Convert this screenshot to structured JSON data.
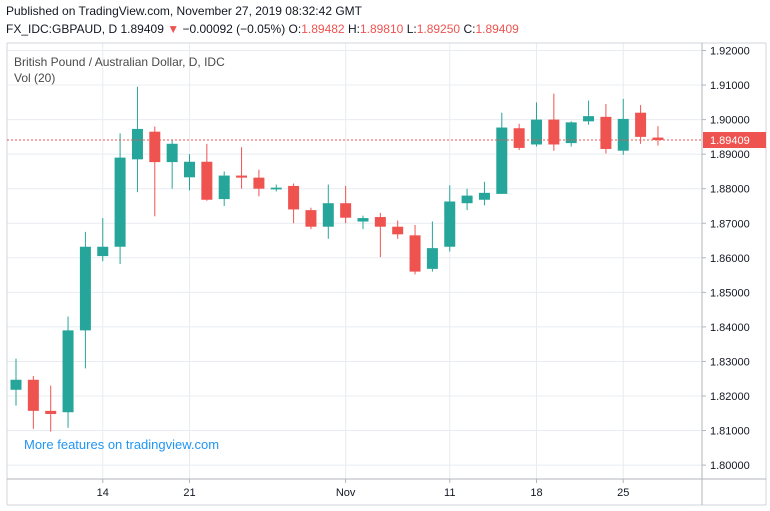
{
  "header": {
    "published": "Published on TradingView.com, November 27, 2019 08:32:42 GMT",
    "symbol": "FX_IDC:GBPAUD, D",
    "last": "1.89409",
    "change": "−0.00092 (−0.05%)",
    "o_label": "O:",
    "o_value": "1.89482",
    "h_label": "H:",
    "h_value": "1.89810",
    "l_label": "L:",
    "l_value": "1.89250",
    "c_label": "C:",
    "c_value": "1.89409"
  },
  "legend": {
    "title": "British Pound / Australian Dollar, D, IDC",
    "volume": "Vol (20)"
  },
  "promo": "More features on tradingview.com",
  "last_price_label": "1.89409",
  "colors": {
    "up": "#26a69a",
    "down": "#ef5350",
    "grid": "#e8ecf0",
    "price_line": "#ef5350",
    "link": "#2196f3"
  },
  "chart_data": {
    "type": "candlestick",
    "title": "British Pound / Australian Dollar, D, IDC",
    "ylim": [
      1.795,
      1.925
    ],
    "y_ticks": [
      "1.80000",
      "1.81000",
      "1.82000",
      "1.83000",
      "1.84000",
      "1.85000",
      "1.86000",
      "1.87000",
      "1.88000",
      "1.89000",
      "1.90000",
      "1.91000",
      "1.92000"
    ],
    "x_ticks": [
      {
        "label": "14",
        "index": 5
      },
      {
        "label": "21",
        "index": 10
      },
      {
        "label": "Nov",
        "index": 19
      },
      {
        "label": "11",
        "index": 25
      },
      {
        "label": "18",
        "index": 30
      },
      {
        "label": "25",
        "index": 35
      }
    ],
    "candles": [
      {
        "o": 1.8218,
        "h": 1.8308,
        "l": 1.8172,
        "c": 1.8247
      },
      {
        "o": 1.8247,
        "h": 1.8258,
        "l": 1.8105,
        "c": 1.8157
      },
      {
        "o": 1.8157,
        "h": 1.823,
        "l": 1.8097,
        "c": 1.8148
      },
      {
        "o": 1.8153,
        "h": 1.843,
        "l": 1.8108,
        "c": 1.839
      },
      {
        "o": 1.839,
        "h": 1.8675,
        "l": 1.828,
        "c": 1.8632
      },
      {
        "o": 1.8605,
        "h": 1.8715,
        "l": 1.859,
        "c": 1.8632
      },
      {
        "o": 1.8632,
        "h": 1.896,
        "l": 1.8582,
        "c": 1.889
      },
      {
        "o": 1.8885,
        "h": 1.9095,
        "l": 1.879,
        "c": 1.8973
      },
      {
        "o": 1.8965,
        "h": 1.898,
        "l": 1.872,
        "c": 1.8877
      },
      {
        "o": 1.8877,
        "h": 1.894,
        "l": 1.88,
        "c": 1.893
      },
      {
        "o": 1.8833,
        "h": 1.89,
        "l": 1.8795,
        "c": 1.8878
      },
      {
        "o": 1.8878,
        "h": 1.893,
        "l": 1.8765,
        "c": 1.8768
      },
      {
        "o": 1.877,
        "h": 1.885,
        "l": 1.875,
        "c": 1.8838
      },
      {
        "o": 1.8838,
        "h": 1.892,
        "l": 1.88,
        "c": 1.8832
      },
      {
        "o": 1.8832,
        "h": 1.8855,
        "l": 1.8778,
        "c": 1.88
      },
      {
        "o": 1.8798,
        "h": 1.8812,
        "l": 1.8792,
        "c": 1.8803
      },
      {
        "o": 1.8808,
        "h": 1.8815,
        "l": 1.87,
        "c": 1.874
      },
      {
        "o": 1.8738,
        "h": 1.8745,
        "l": 1.8683,
        "c": 1.869
      },
      {
        "o": 1.869,
        "h": 1.8812,
        "l": 1.8655,
        "c": 1.8758
      },
      {
        "o": 1.8758,
        "h": 1.8808,
        "l": 1.87,
        "c": 1.8716
      },
      {
        "o": 1.8705,
        "h": 1.8722,
        "l": 1.8683,
        "c": 1.8715
      },
      {
        "o": 1.8718,
        "h": 1.873,
        "l": 1.8602,
        "c": 1.869
      },
      {
        "o": 1.869,
        "h": 1.8708,
        "l": 1.8655,
        "c": 1.8668
      },
      {
        "o": 1.8665,
        "h": 1.8695,
        "l": 1.8552,
        "c": 1.856
      },
      {
        "o": 1.8568,
        "h": 1.8705,
        "l": 1.856,
        "c": 1.8628
      },
      {
        "o": 1.8632,
        "h": 1.881,
        "l": 1.8618,
        "c": 1.8763
      },
      {
        "o": 1.8758,
        "h": 1.88,
        "l": 1.8738,
        "c": 1.878
      },
      {
        "o": 1.8768,
        "h": 1.882,
        "l": 1.8752,
        "c": 1.8788
      },
      {
        "o": 1.8785,
        "h": 1.902,
        "l": 1.8785,
        "c": 1.8977
      },
      {
        "o": 1.8975,
        "h": 1.8988,
        "l": 1.8912,
        "c": 1.8918
      },
      {
        "o": 1.8928,
        "h": 1.905,
        "l": 1.8922,
        "c": 1.9
      },
      {
        "o": 1.9,
        "h": 1.9075,
        "l": 1.891,
        "c": 1.8928
      },
      {
        "o": 1.8932,
        "h": 1.8995,
        "l": 1.8922,
        "c": 1.8992
      },
      {
        "o": 1.8995,
        "h": 1.9055,
        "l": 1.8985,
        "c": 1.901
      },
      {
        "o": 1.9008,
        "h": 1.9045,
        "l": 1.8902,
        "c": 1.8915
      },
      {
        "o": 1.891,
        "h": 1.906,
        "l": 1.8898,
        "c": 1.9002
      },
      {
        "o": 1.902,
        "h": 1.9042,
        "l": 1.893,
        "c": 1.895
      },
      {
        "o": 1.8948,
        "h": 1.8981,
        "l": 1.8925,
        "c": 1.8941
      }
    ]
  }
}
